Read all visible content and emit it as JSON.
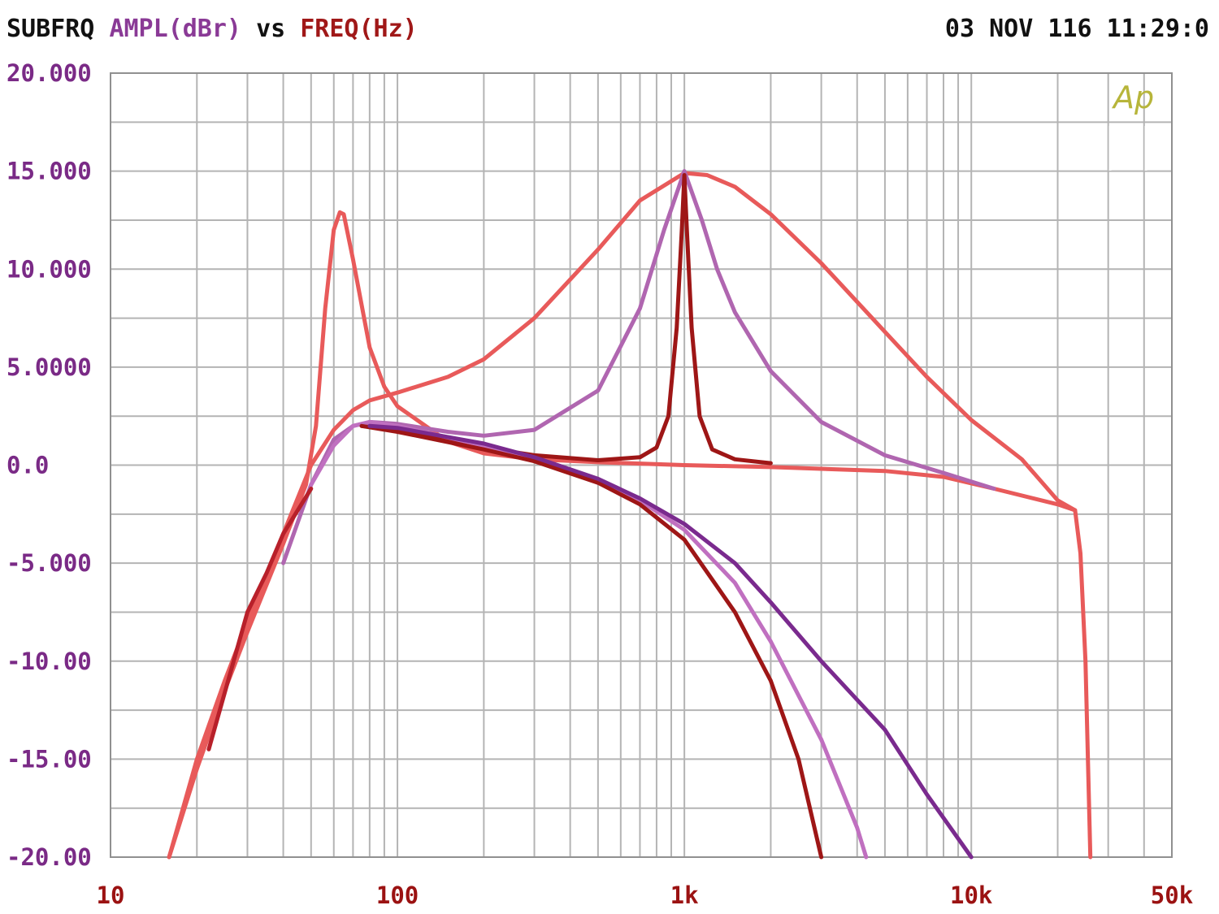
{
  "header": {
    "prefix": "SUBFRQ",
    "y_quantity": "AMPL(dBr)",
    "vs": "vs",
    "x_quantity": "FREQ(Hz)",
    "timestamp": "03 NOV 116 11:29:0"
  },
  "logo_text": "Ap",
  "colors": {
    "prefix": "#111111",
    "y_quantity": "#8a3a96",
    "x_quantity": "#a01818",
    "grid": "#b4b4b4",
    "frame": "#909090",
    "logo": "#b7b53a"
  },
  "chart_data": {
    "type": "line",
    "x_scale": "log",
    "xlim": [
      10,
      50000
    ],
    "ylim": [
      -20,
      20
    ],
    "grid": true,
    "x_ticks": [
      {
        "value": 10,
        "label": "10"
      },
      {
        "value": 100,
        "label": "100"
      },
      {
        "value": 1000,
        "label": "1k"
      },
      {
        "value": 10000,
        "label": "10k"
      },
      {
        "value": 50000,
        "label": "50k"
      }
    ],
    "y_ticks": [
      {
        "value": 20,
        "label": "20.000"
      },
      {
        "value": 15,
        "label": "15.000"
      },
      {
        "value": 10,
        "label": "10.000"
      },
      {
        "value": 5,
        "label": "5.0000"
      },
      {
        "value": 0,
        "label": "0.0"
      },
      {
        "value": -5,
        "label": "-5.000"
      },
      {
        "value": -10,
        "label": "-10.00"
      },
      {
        "value": -15,
        "label": "-15.00"
      },
      {
        "value": -20,
        "label": "-20.00"
      }
    ],
    "series": [
      {
        "color": "#e85a5a",
        "points": [
          [
            16,
            -20
          ],
          [
            20,
            -15.5
          ],
          [
            25,
            -11.5
          ],
          [
            30,
            -8.5
          ],
          [
            40,
            -4
          ],
          [
            48,
            -1
          ],
          [
            52,
            2
          ],
          [
            56,
            8
          ],
          [
            60,
            12
          ],
          [
            63,
            12.9
          ],
          [
            65,
            12.8
          ],
          [
            70,
            10.5
          ],
          [
            80,
            6
          ],
          [
            90,
            4
          ],
          [
            100,
            3
          ],
          [
            150,
            1.2
          ],
          [
            200,
            0.6
          ],
          [
            300,
            0.3
          ],
          [
            500,
            0.15
          ],
          [
            1000,
            0
          ],
          [
            2000,
            -0.1
          ],
          [
            5000,
            -0.3
          ],
          [
            8000,
            -0.6
          ],
          [
            12000,
            -1.2
          ],
          [
            20000,
            -2
          ],
          [
            23000,
            -2.3
          ],
          [
            24000,
            -4.5
          ],
          [
            25000,
            -10
          ],
          [
            26000,
            -20
          ]
        ]
      },
      {
        "color": "#e85a5a",
        "points": [
          [
            16,
            -20
          ],
          [
            20,
            -15
          ],
          [
            25,
            -11
          ],
          [
            30,
            -8
          ],
          [
            40,
            -3.5
          ],
          [
            50,
            0
          ],
          [
            60,
            1.8
          ],
          [
            70,
            2.8
          ],
          [
            80,
            3.3
          ],
          [
            100,
            3.7
          ],
          [
            150,
            4.5
          ],
          [
            200,
            5.4
          ],
          [
            300,
            7.5
          ],
          [
            500,
            11
          ],
          [
            700,
            13.5
          ],
          [
            1000,
            14.9
          ],
          [
            1200,
            14.8
          ],
          [
            1500,
            14.2
          ],
          [
            2000,
            12.8
          ],
          [
            3000,
            10.3
          ],
          [
            5000,
            6.8
          ],
          [
            7000,
            4.5
          ],
          [
            10000,
            2.3
          ],
          [
            15000,
            0.3
          ],
          [
            20000,
            -1.8
          ],
          [
            23000,
            -2.3
          ]
        ]
      },
      {
        "color": "#b066b0",
        "points": [
          [
            40,
            -5
          ],
          [
            50,
            -1
          ],
          [
            60,
            1.3
          ],
          [
            70,
            2
          ],
          [
            80,
            2.2
          ],
          [
            100,
            2.1
          ],
          [
            150,
            1.7
          ],
          [
            200,
            1.5
          ],
          [
            300,
            1.8
          ],
          [
            500,
            3.8
          ],
          [
            700,
            8
          ],
          [
            850,
            12
          ],
          [
            1000,
            15
          ],
          [
            1150,
            12.5
          ],
          [
            1300,
            10
          ],
          [
            1500,
            7.8
          ],
          [
            2000,
            4.8
          ],
          [
            3000,
            2.2
          ],
          [
            5000,
            0.5
          ],
          [
            8000,
            -0.4
          ],
          [
            12000,
            -1.2
          ]
        ]
      },
      {
        "color": "#9e1616",
        "points": [
          [
            75,
            2
          ],
          [
            100,
            1.8
          ],
          [
            150,
            1.3
          ],
          [
            200,
            0.9
          ],
          [
            300,
            0.5
          ],
          [
            500,
            0.25
          ],
          [
            700,
            0.4
          ],
          [
            800,
            0.9
          ],
          [
            880,
            2.5
          ],
          [
            940,
            7
          ],
          [
            980,
            12
          ],
          [
            1000,
            14.8
          ],
          [
            1020,
            12
          ],
          [
            1060,
            7
          ],
          [
            1130,
            2.5
          ],
          [
            1250,
            0.8
          ],
          [
            1500,
            0.3
          ],
          [
            2000,
            0.1
          ]
        ]
      },
      {
        "color": "#c070c0",
        "points": [
          [
            50,
            -1
          ],
          [
            60,
            1
          ],
          [
            70,
            2
          ],
          [
            80,
            2.2
          ],
          [
            100,
            2
          ],
          [
            200,
            1
          ],
          [
            300,
            0.3
          ],
          [
            500,
            -0.9
          ],
          [
            700,
            -1.8
          ],
          [
            1000,
            -3.3
          ],
          [
            1500,
            -6
          ],
          [
            2000,
            -9
          ],
          [
            3000,
            -14
          ],
          [
            4000,
            -18.5
          ],
          [
            4300,
            -20
          ]
        ]
      },
      {
        "color": "#9e1616",
        "points": [
          [
            75,
            2
          ],
          [
            100,
            1.7
          ],
          [
            200,
            0.8
          ],
          [
            300,
            0.2
          ],
          [
            500,
            -0.9
          ],
          [
            700,
            -2
          ],
          [
            1000,
            -3.8
          ],
          [
            1500,
            -7.5
          ],
          [
            2000,
            -11
          ],
          [
            2500,
            -15
          ],
          [
            3000,
            -20
          ]
        ]
      },
      {
        "color": "#7a2a8e",
        "points": [
          [
            80,
            2
          ],
          [
            100,
            1.9
          ],
          [
            200,
            1.1
          ],
          [
            300,
            0.4
          ],
          [
            500,
            -0.7
          ],
          [
            700,
            -1.7
          ],
          [
            1000,
            -3
          ],
          [
            1500,
            -5
          ],
          [
            2000,
            -7
          ],
          [
            3000,
            -10
          ],
          [
            5000,
            -13.5
          ],
          [
            7000,
            -16.8
          ],
          [
            10000,
            -20
          ]
        ]
      },
      {
        "color": "#b8202a",
        "points": [
          [
            22,
            -14.5
          ],
          [
            30,
            -7.5
          ],
          [
            35,
            -5.5
          ],
          [
            40,
            -3.5
          ],
          [
            50,
            -1.2
          ]
        ]
      }
    ]
  }
}
